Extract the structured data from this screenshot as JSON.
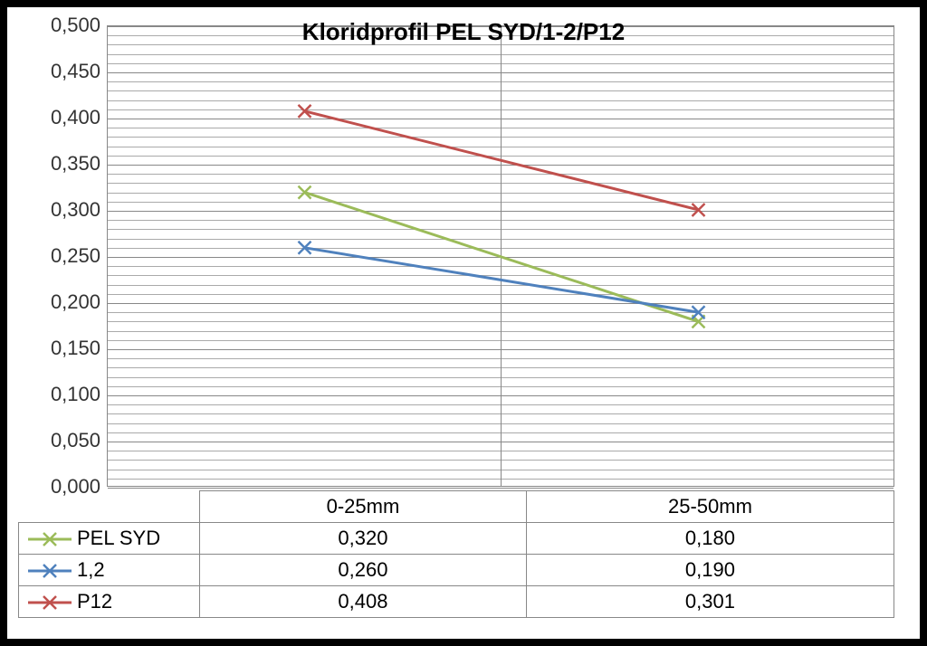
{
  "chart": {
    "type": "line",
    "title": "Kloridprofil PEL SYD/1-2/P12",
    "title_fontsize": 26,
    "background_color": "#ffffff",
    "grid_color": "#aaaaaa",
    "grid_major_color": "#888888",
    "ylim": [
      0.0,
      0.5
    ],
    "ytick_step_major": 0.05,
    "ytick_step_minor": 0.01,
    "y_ticks": [
      "0,000",
      "0,050",
      "0,100",
      "0,150",
      "0,200",
      "0,250",
      "0,300",
      "0,350",
      "0,400",
      "0,450",
      "0,500"
    ],
    "categories": [
      "0-25mm",
      "25-50mm"
    ],
    "series": [
      {
        "name": "PEL SYD",
        "color": "#9bbb59",
        "marker": "x",
        "line_width": 3,
        "values": [
          0.32,
          0.18
        ],
        "labels": [
          "0,320",
          "0,180"
        ]
      },
      {
        "name": "1,2",
        "color": "#4f81bd",
        "marker": "x",
        "line_width": 3,
        "values": [
          0.26,
          0.19
        ],
        "labels": [
          "0,260",
          "0,190"
        ]
      },
      {
        "name": "P12",
        "color": "#c0504d",
        "marker": "x",
        "line_width": 3,
        "values": [
          0.408,
          0.301
        ],
        "labels": [
          "0,408",
          "0,301"
        ]
      }
    ],
    "label_fontsize": 22
  }
}
